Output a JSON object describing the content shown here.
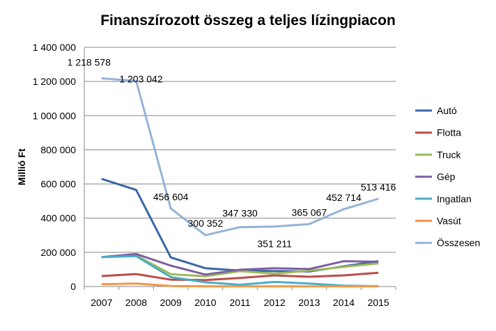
{
  "chart_data": {
    "type": "line",
    "title": "Finanszírozott összeg a teljes lízingpiacon",
    "ylabel": "Millió Ft",
    "xlabel": "",
    "x": [
      "2007",
      "2008",
      "2009",
      "2010",
      "2011",
      "2012",
      "2013",
      "2014",
      "2015"
    ],
    "ylim": [
      0,
      1400000
    ],
    "yticks": [
      0,
      200000,
      400000,
      600000,
      800000,
      1000000,
      1200000,
      1400000
    ],
    "ytick_labels": [
      "0",
      "200 000",
      "400 000",
      "600 000",
      "800 000",
      "1 000 000",
      "1 200 000",
      "1 400 000"
    ],
    "grid": true,
    "legend_position": "right",
    "series": [
      {
        "name": "Autó",
        "color": "#3a67a5",
        "values": [
          630000,
          565000,
          170000,
          107000,
          93000,
          90000,
          88000,
          118000,
          148000
        ]
      },
      {
        "name": "Flotta",
        "color": "#be4b48",
        "values": [
          61000,
          73000,
          40000,
          38000,
          50000,
          65000,
          57000,
          65000,
          80000
        ]
      },
      {
        "name": "Truck",
        "color": "#9bbb59",
        "values": [
          172000,
          182000,
          72000,
          60000,
          90000,
          75000,
          93000,
          115000,
          135000
        ]
      },
      {
        "name": "Gép",
        "color": "#7d5fa0",
        "values": [
          172000,
          190000,
          122000,
          70000,
          98000,
          107000,
          102000,
          148000,
          145000
        ]
      },
      {
        "name": "Ingatlan",
        "color": "#4aacc6",
        "values": [
          172000,
          178000,
          55000,
          25000,
          10000,
          27000,
          17000,
          5000,
          2000
        ]
      },
      {
        "name": "Vasút",
        "color": "#f79646",
        "values": [
          13000,
          17000,
          3000,
          1000,
          1000,
          1000,
          1000,
          1000,
          1000
        ]
      },
      {
        "name": "Összesen",
        "color": "#94b3d7",
        "values": [
          1218578,
          1203042,
          456604,
          300352,
          347330,
          351211,
          365067,
          452714,
          513416
        ]
      }
    ],
    "data_labels": [
      "1 218 578",
      "1 203 042",
      "456 604",
      "300 352",
      "347 330",
      "351 211",
      "365 067",
      "452 714",
      "513 416"
    ]
  }
}
